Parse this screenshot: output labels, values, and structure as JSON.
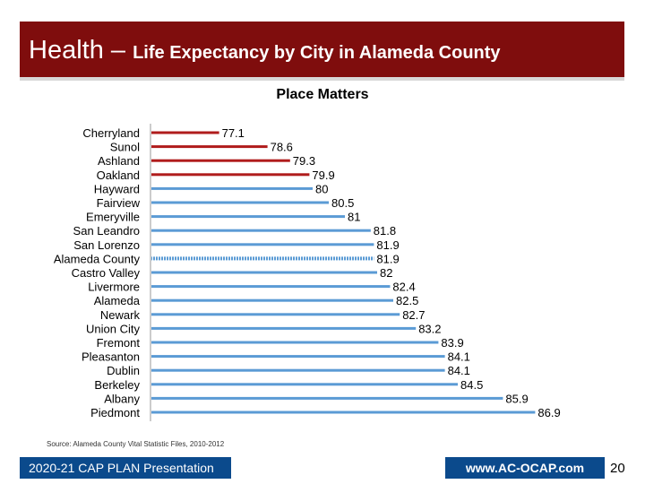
{
  "slide": {
    "title_main": "Health – ",
    "title_sub": "Life Expectancy by City in Alameda County",
    "source": "Source: Alameda County Vital Statistic Files, 2010-2012",
    "footer_left": "2020-21 CAP PLAN Presentation",
    "footer_right": "www.AC-OCAP.com",
    "page_number": "20"
  },
  "colors": {
    "title_bg": "#7f0d0d",
    "highlight_bar": "#b01c1c",
    "normal_bar": "#5b9bd5",
    "footer_bg": "#0b4a8c"
  },
  "chart_data": {
    "type": "bar",
    "orientation": "horizontal",
    "title": "Place Matters",
    "categories": [
      "Cherryland",
      "Sunol",
      "Ashland",
      "Oakland",
      "Hayward",
      "Fairview",
      "Emeryville",
      "San Leandro",
      "San Lorenzo",
      "Alameda County",
      "Castro Valley",
      "Livermore",
      "Alameda",
      "Newark",
      "Union City",
      "Fremont",
      "Pleasanton",
      "Dublin",
      "Berkeley",
      "Albany",
      "Piedmont"
    ],
    "values": [
      77.1,
      78.6,
      79.3,
      79.9,
      80,
      80.5,
      81,
      81.8,
      81.9,
      81.9,
      82,
      82.4,
      82.5,
      82.7,
      83.2,
      83.9,
      84.1,
      84.1,
      84.5,
      85.9,
      86.9
    ],
    "value_labels": [
      "77.1",
      "78.6",
      "79.3",
      "79.9",
      "80",
      "80.5",
      "81",
      "81.8",
      "81.9",
      "81.9",
      "82",
      "82.4",
      "82.5",
      "82.7",
      "83.2",
      "83.9",
      "84.1",
      "84.1",
      "84.5",
      "85.9",
      "86.9"
    ],
    "bar_style": [
      "highlight",
      "highlight",
      "highlight",
      "highlight",
      "normal",
      "normal",
      "normal",
      "normal",
      "normal",
      "county",
      "normal",
      "normal",
      "normal",
      "normal",
      "normal",
      "normal",
      "normal",
      "normal",
      "normal",
      "normal",
      "normal"
    ],
    "xlim": [
      75,
      87.5
    ]
  }
}
